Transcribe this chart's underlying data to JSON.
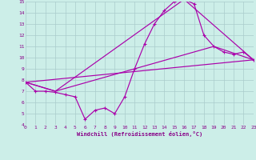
{
  "bg_color": "#cceee8",
  "grid_color": "#aacccc",
  "line_color": "#aa00aa",
  "xlim": [
    0,
    23
  ],
  "ylim": [
    4,
    15
  ],
  "xticks": [
    0,
    1,
    2,
    3,
    4,
    5,
    6,
    7,
    8,
    9,
    10,
    11,
    12,
    13,
    14,
    15,
    16,
    17,
    18,
    19,
    20,
    21,
    22,
    23
  ],
  "yticks": [
    4,
    5,
    6,
    7,
    8,
    9,
    10,
    11,
    12,
    13,
    14,
    15
  ],
  "xlabel": "Windchill (Refroidissement éolien,°C)",
  "series1_x": [
    0,
    1,
    2,
    3,
    4,
    5,
    6,
    7,
    8,
    9,
    10,
    11,
    12,
    13,
    14,
    15,
    16,
    17,
    18,
    19,
    20,
    21,
    22,
    23
  ],
  "series1_y": [
    7.8,
    7.0,
    7.0,
    6.9,
    6.7,
    6.5,
    4.5,
    5.3,
    5.5,
    5.0,
    6.5,
    9.0,
    11.2,
    13.0,
    14.2,
    15.0,
    15.2,
    14.8,
    12.0,
    11.0,
    10.5,
    10.3,
    10.5,
    9.8
  ],
  "series2_x": [
    0,
    23
  ],
  "series2_y": [
    7.8,
    9.8
  ],
  "series3_x": [
    0,
    3,
    16,
    23
  ],
  "series3_y": [
    7.8,
    7.0,
    15.2,
    9.8
  ],
  "series4_x": [
    0,
    3,
    19,
    23
  ],
  "series4_y": [
    7.8,
    7.0,
    11.0,
    9.8
  ]
}
